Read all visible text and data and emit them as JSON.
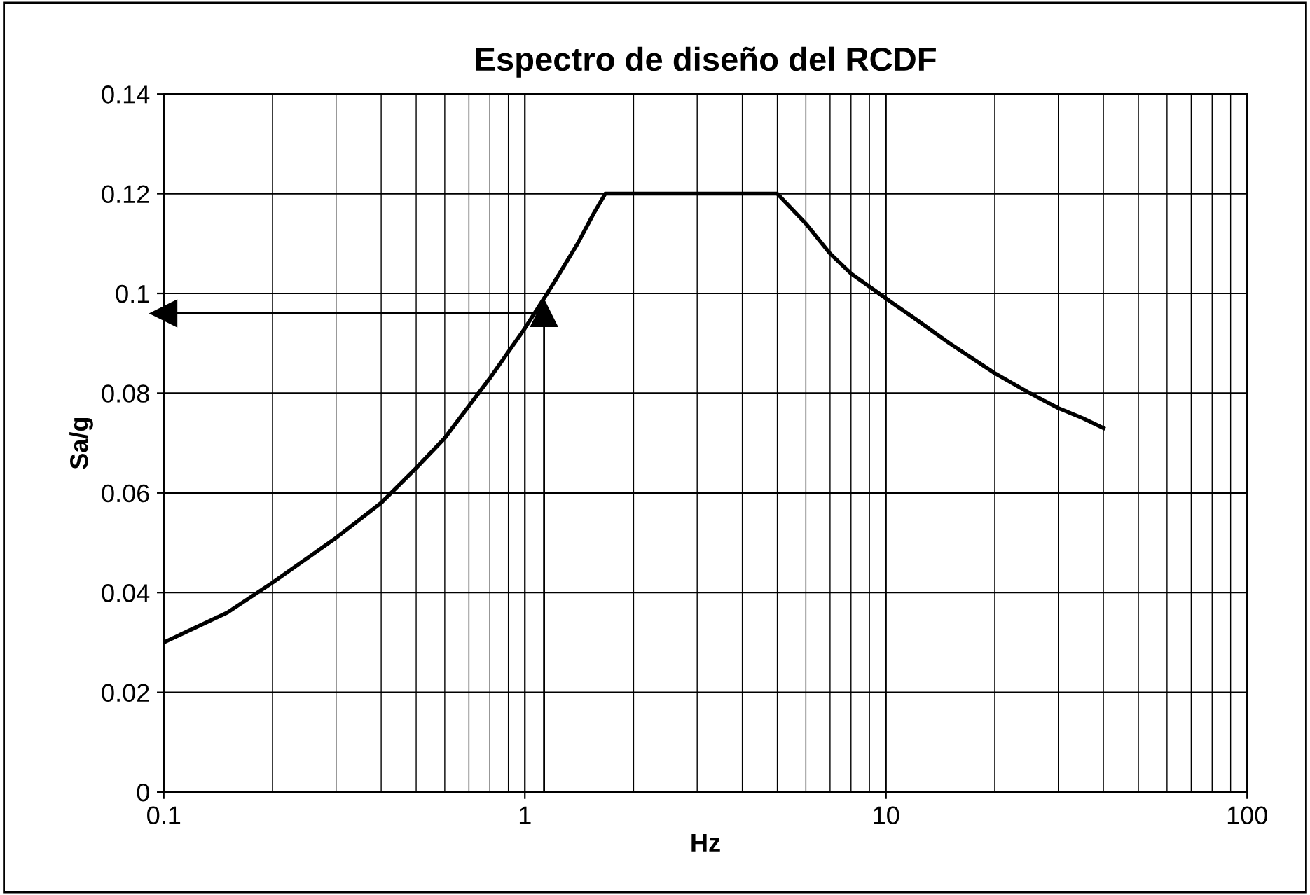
{
  "chart_data": {
    "type": "line",
    "title": "Espectro de diseño del RCDF",
    "xlabel": "Hz",
    "ylabel": "Sa/g",
    "log": "x",
    "xlim": [
      0.1,
      100
    ],
    "xticks": [
      0.1,
      1,
      10,
      100
    ],
    "ylim": [
      0,
      0.14
    ],
    "yticks": [
      0,
      0.02,
      0.04,
      0.06,
      0.08,
      0.1,
      0.12,
      0.14
    ],
    "grid": true,
    "legend": false,
    "series": [
      {
        "color": "#000000",
        "x": [
          0.1,
          0.15,
          0.2,
          0.3,
          0.4,
          0.5,
          0.6,
          0.8,
          1.0,
          1.2,
          1.4,
          1.55,
          1.67,
          2.5,
          3.5,
          5.0,
          6,
          7,
          8,
          10,
          12,
          15,
          20,
          25,
          30,
          35,
          40
        ],
        "values": [
          0.03,
          0.036,
          0.042,
          0.051,
          0.058,
          0.065,
          0.071,
          0.083,
          0.093,
          0.102,
          0.11,
          0.116,
          0.12,
          0.12,
          0.12,
          0.12,
          0.114,
          0.108,
          0.104,
          0.099,
          0.095,
          0.09,
          0.084,
          0.08,
          0.077,
          0.075,
          0.073
        ]
      },
      {
        "type": "line",
        "marker": "triangle",
        "color": "#000000",
        "x": [
          1.13,
          1.13,
          0.1
        ],
        "values": [
          0,
          0.096,
          0.096
        ]
      }
    ]
  }
}
